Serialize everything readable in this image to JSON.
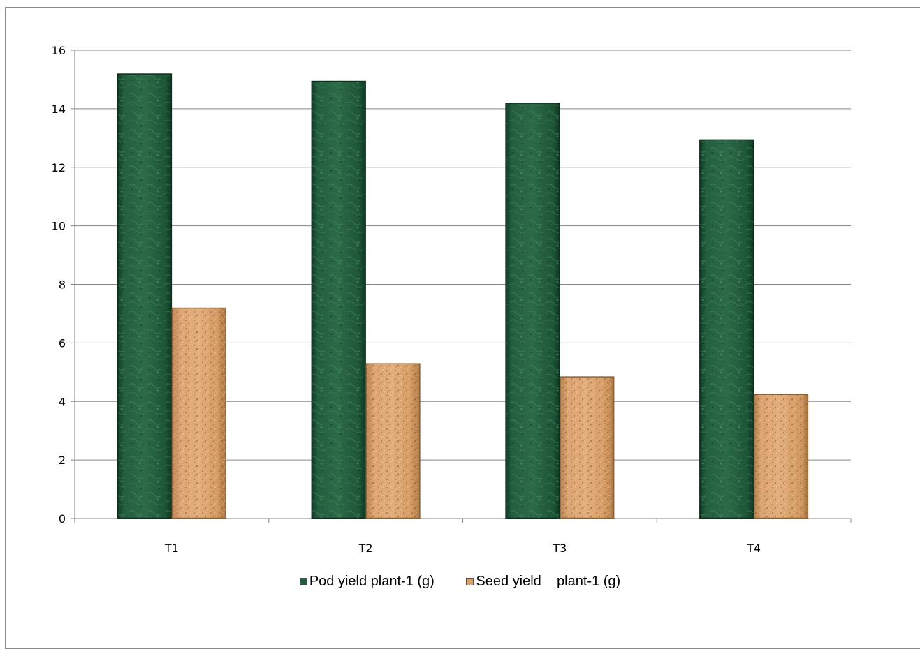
{
  "chart_data": {
    "type": "bar",
    "categories": [
      "T1",
      "T2",
      "T3",
      "T4"
    ],
    "series": [
      {
        "name": "Pod yield plant-1 (g)",
        "values": [
          15.2,
          14.95,
          14.2,
          12.95
        ],
        "color": "#1f5e3c"
      },
      {
        "name": "Seed yield    plant-1 (g)",
        "values": [
          7.2,
          5.3,
          4.85,
          4.25
        ],
        "color": "#d9a06a"
      }
    ],
    "ylim": [
      0,
      16
    ],
    "yticks": [
      "0",
      "2",
      "4",
      "6",
      "8",
      "10",
      "12",
      "14",
      "16"
    ],
    "ytick_values": [
      0,
      2,
      4,
      6,
      8,
      10,
      12,
      14,
      16
    ],
    "grid": true,
    "legend_position": "bottom",
    "title": "",
    "xlabel": "",
    "ylabel": ""
  }
}
